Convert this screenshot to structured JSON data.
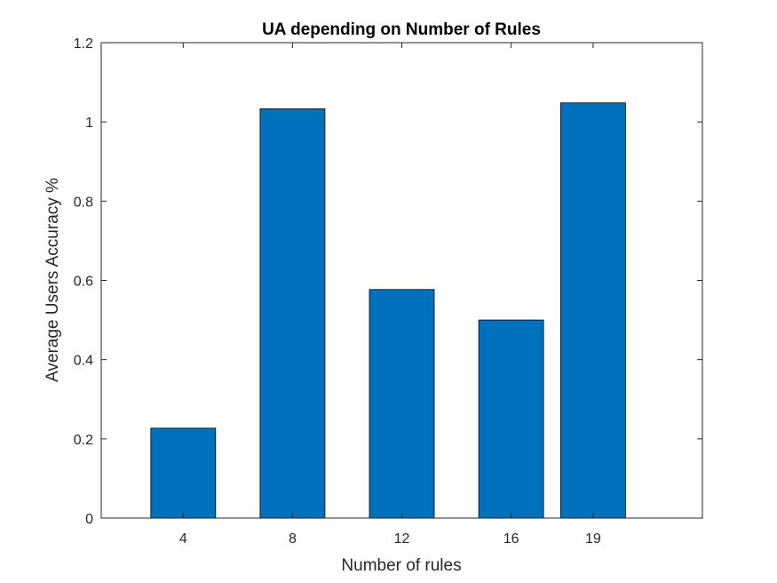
{
  "chart_data": {
    "type": "bar",
    "title": "UA depending on Number of Rules",
    "xlabel": "Number of rules",
    "ylabel": "Average Users Accuracy %",
    "categories": [
      "4",
      "8",
      "12",
      "16",
      "19"
    ],
    "x": [
      4,
      8,
      12,
      16,
      19
    ],
    "values": [
      0.227,
      1.033,
      0.577,
      0.5,
      1.048
    ],
    "xlim": [
      1,
      23
    ],
    "ylim": [
      0,
      1.2
    ],
    "yticks": [
      0,
      0.2,
      0.4,
      0.6,
      0.8,
      1,
      1.2
    ],
    "ytick_labels": [
      "0",
      "0.2",
      "0.4",
      "0.6",
      "0.8",
      "1",
      "1.2"
    ],
    "grid": false,
    "bar_color": "#0072BD"
  }
}
